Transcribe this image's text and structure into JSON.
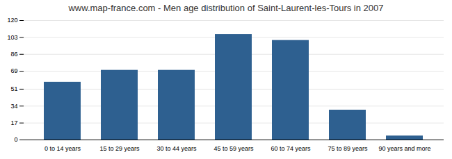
{
  "chart_data": {
    "type": "bar",
    "title": "www.map-france.com - Men age distribution of Saint-Laurent-les-Tours in 2007",
    "categories": [
      "0 to 14 years",
      "15 to 29 years",
      "30 to 44 years",
      "45 to 59 years",
      "60 to 74 years",
      "75 to 89 years",
      "90 years and more"
    ],
    "values": [
      58,
      70,
      70,
      106,
      100,
      30,
      4
    ],
    "color": "#2e6090",
    "ylim": [
      0,
      120
    ],
    "yticks": [
      0,
      17,
      34,
      51,
      69,
      86,
      103,
      120
    ],
    "grid": true
  }
}
